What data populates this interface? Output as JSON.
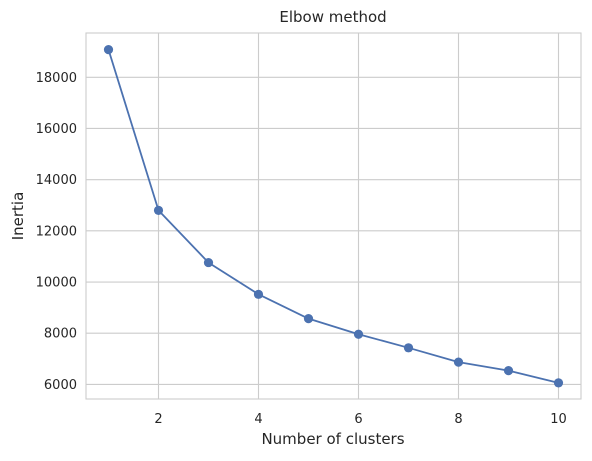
{
  "chart_data": {
    "type": "line",
    "title": "Elbow method",
    "xlabel": "Number of clusters",
    "ylabel": "Inertia",
    "x": [
      1,
      2,
      3,
      4,
      5,
      6,
      7,
      8,
      9,
      10
    ],
    "series": [
      {
        "values": [
          19080,
          12800,
          10760,
          9520,
          8570,
          7960,
          7430,
          6870,
          6540,
          6060
        ],
        "color": "#4c72b0",
        "marker": "circle"
      }
    ],
    "xticks": [
      2,
      4,
      6,
      8,
      10
    ],
    "xtick_labels": [
      "2",
      "4",
      "6",
      "8",
      "10"
    ],
    "yticks": [
      6000,
      8000,
      10000,
      12000,
      14000,
      16000,
      18000
    ],
    "ytick_labels": [
      "6000",
      "8000",
      "10000",
      "12000",
      "14000",
      "16000",
      "18000"
    ],
    "xlim": [
      0.55,
      10.45
    ],
    "ylim": [
      5430,
      19730
    ],
    "grid": true,
    "legend": "none"
  }
}
